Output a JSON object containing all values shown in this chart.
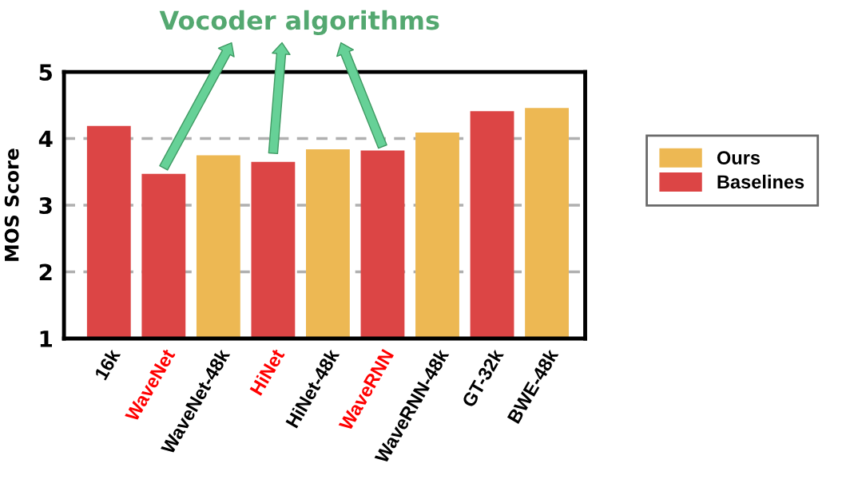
{
  "chart_data": {
    "type": "bar",
    "ylabel": "MOS Score",
    "categories": [
      "16k",
      "WaveNet",
      "WaveNet-48k",
      "HiNet",
      "HiNet-48k",
      "WaveRNN",
      "WaveRNN-48k",
      "GT-32k",
      "BWE-48k"
    ],
    "series": [
      {
        "name": "Ours",
        "color": "#edb853",
        "values": [
          null,
          null,
          3.75,
          null,
          3.84,
          null,
          4.09,
          null,
          4.46
        ]
      },
      {
        "name": "Baselines",
        "color": "#dc4545",
        "values": [
          4.19,
          3.47,
          null,
          3.65,
          null,
          3.82,
          null,
          4.41,
          null
        ]
      }
    ],
    "ylim": [
      1,
      5
    ],
    "yticks": [
      1,
      2,
      3,
      4,
      5
    ],
    "grid": "y",
    "legend": "right",
    "annotations": [
      "Vocoder algorithms"
    ]
  }
}
